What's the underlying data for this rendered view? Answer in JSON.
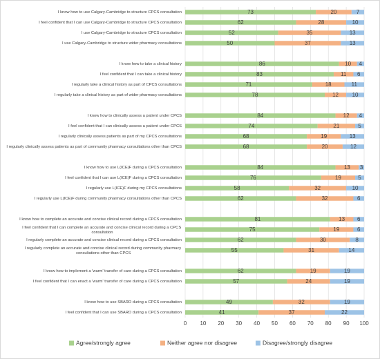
{
  "chart_data": {
    "type": "stacked-barh",
    "categories": [
      "I know how to use Calgary-Cambridge to structure CPCS consultation",
      "I feel confident that I can use Calgary-Cambridge to structure CPCS consultation",
      "I use Calgary-Cambridge to structure CPCS consultation",
      "I use Calgary-Cambridge to structure wider pharmacy consultations",
      null,
      "I know how to take a clinical history",
      "I feel confident that I can take a clinical history",
      "I regularly take a clinical history as part of CPCS consultations",
      "I regularly take a clinical history as part of wider pharmacy consultations",
      null,
      "I know how to clinically assess a patient under CPCS",
      "I feel confident that I can clinically assess a patient under CPCS",
      "I regularly clinically assess patients as part of my CPCS consultations",
      "I regularly clinically assess patients as part of community pharmacy consultations other than CPCS",
      null,
      "I know how to use L(ICE)F during a CPCS consultation",
      "I feel confident that I can use L(ICE)F during a CPCS consultation",
      "I regularly use L(ICE)F during my CPCS consultations",
      "I regularly use L(ICE)F during community pharmacy consultations other than CPCS",
      null,
      "I know how to complete an accurate and concise clinical record during a CPCS consultation",
      "I feel confident that I can complete an accurate and concise clinical record during a CPCS consultation",
      "I regularly complete an accurate and concise clinical record during a CPCS consultation",
      "I regularly complete an accurate and concise clinical record during community pharmacy consultations other than CPCS",
      null,
      "I know how to implement a 'warm' transfer of care during a CPCS consultation",
      "I feel confident that I can enact a 'warm' transfer of care during a CPCS consultation",
      null,
      "I know how to use SBARD during a CPCS consultation",
      "I feel confident that I can use SBARD during a CPCS consultation"
    ],
    "series": [
      {
        "name": "Agree/strongly agree",
        "color": "#a9d18e",
        "values": [
          73,
          62,
          52,
          50,
          null,
          86,
          83,
          71,
          78,
          null,
          84,
          74,
          68,
          68,
          null,
          84,
          76,
          58,
          62,
          null,
          81,
          75,
          62,
          55,
          null,
          62,
          57,
          null,
          49,
          41
        ]
      },
      {
        "name": "Neither agree nor disagree",
        "color": "#f4b183",
        "values": [
          20,
          28,
          35,
          37,
          null,
          10,
          11,
          18,
          12,
          null,
          12,
          21,
          19,
          20,
          null,
          13,
          19,
          32,
          32,
          null,
          13,
          19,
          30,
          31,
          null,
          19,
          24,
          null,
          32,
          37
        ]
      },
      {
        "name": "Disagree/strongly disagree",
        "color": "#9dc3e6",
        "values": [
          7,
          10,
          13,
          13,
          null,
          4,
          6,
          11,
          10,
          null,
          4,
          5,
          13,
          12,
          null,
          3,
          5,
          10,
          6,
          null,
          6,
          6,
          8,
          14,
          null,
          19,
          19,
          null,
          19,
          22
        ]
      }
    ],
    "xlim": [
      0,
      100
    ],
    "xticks": [
      0,
      10,
      20,
      30,
      40,
      50,
      60,
      70,
      80,
      90,
      100
    ],
    "grid": true,
    "legend": "bottom"
  }
}
